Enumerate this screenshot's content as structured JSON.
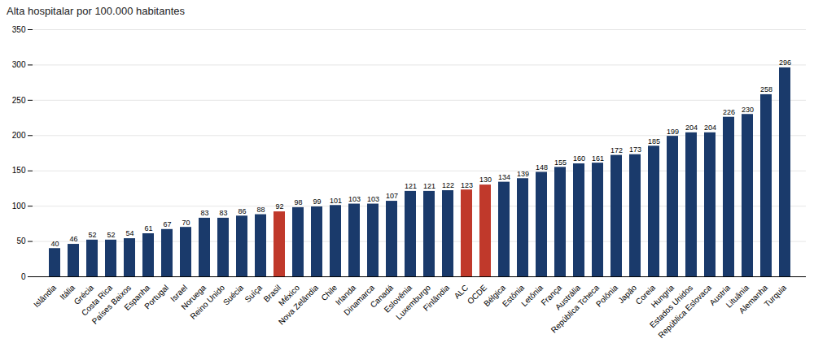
{
  "chart_data": {
    "type": "bar",
    "ylabel": "Alta hospitalar por 100.000 habitantes",
    "categories": [
      "Islândia",
      "Itália",
      "Grécia",
      "Costa Rica",
      "Países Baixos",
      "Espanha",
      "Portugal",
      "Israel",
      "Noruega",
      "Reino Unido",
      "Suécia",
      "Suíça",
      "Brasil",
      "México",
      "Nova Zelândia",
      "Chile",
      "Irlanda",
      "Dinamarca",
      "Canadá",
      "Eslovênia",
      "Luxemburgo",
      "Finlândia",
      "ALC",
      "OCDE",
      "Bélgica",
      "Estônia",
      "Letônia",
      "França",
      "Austrália",
      "República Tcheca",
      "Polônia",
      "Japão",
      "Coreia",
      "Hungria",
      "Estados Unidos",
      "República Eslovaca",
      "Austria",
      "Lituânia",
      "Alemanha",
      "Turquia"
    ],
    "values": [
      40,
      46,
      52,
      52,
      54,
      61,
      67,
      70,
      83,
      83,
      86,
      88,
      92,
      98,
      99,
      101,
      103,
      103,
      107,
      121,
      121,
      122,
      123,
      130,
      134,
      139,
      148,
      155,
      160,
      161,
      172,
      173,
      185,
      199,
      204,
      204,
      226,
      230,
      258,
      296
    ],
    "colors": [
      "#1a3a6b",
      "#1a3a6b",
      "#1a3a6b",
      "#1a3a6b",
      "#1a3a6b",
      "#1a3a6b",
      "#1a3a6b",
      "#1a3a6b",
      "#1a3a6b",
      "#1a3a6b",
      "#1a3a6b",
      "#1a3a6b",
      "#c0392b",
      "#1a3a6b",
      "#1a3a6b",
      "#1a3a6b",
      "#1a3a6b",
      "#1a3a6b",
      "#1a3a6b",
      "#1a3a6b",
      "#1a3a6b",
      "#1a3a6b",
      "#c0392b",
      "#c0392b",
      "#1a3a6b",
      "#1a3a6b",
      "#1a3a6b",
      "#1a3a6b",
      "#1a3a6b",
      "#1a3a6b",
      "#1a3a6b",
      "#1a3a6b",
      "#1a3a6b",
      "#1a3a6b",
      "#1a3a6b",
      "#1a3a6b",
      "#1a3a6b",
      "#1a3a6b",
      "#1a3a6b",
      "#1a3a6b"
    ],
    "ylim": [
      0,
      350
    ],
    "yticks": [
      0,
      50,
      100,
      150,
      200,
      250,
      300,
      350
    ],
    "grid": true,
    "data_labels": true
  }
}
